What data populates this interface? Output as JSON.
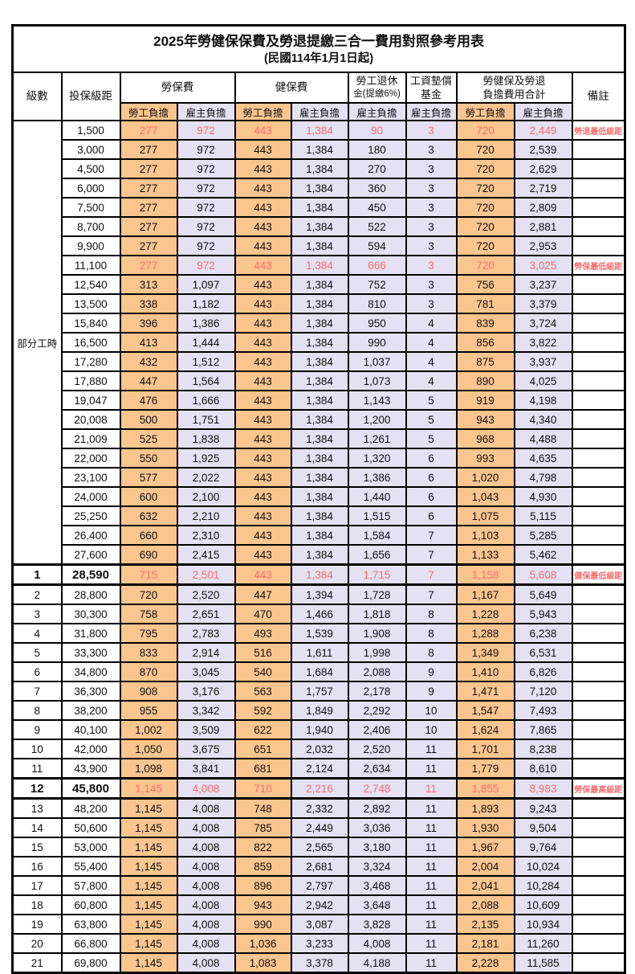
{
  "title": "2025年勞健保保費及勞退提繳三合一費用對照參考用表",
  "subtitle": "(民國114年1月1日起)",
  "header": {
    "level": "級數",
    "bracket": "投保級距",
    "labor": "勞保費",
    "health": "健保費",
    "pension_l1": "勞工退休",
    "pension_l2": "金(提繳6%)",
    "fund_l1": "工資墊償",
    "fund_l2": "基金",
    "total_l1": "勞健保及勞退",
    "total_l2": "負擔費用合計",
    "note": "備註",
    "employee": "勞工負擔",
    "employer": "雇主負擔"
  },
  "part_time_label": "部分工時",
  "colors": {
    "employee_bg": "#FBC58F",
    "employer_bg": "#E3E1F2",
    "highlight_red": "#F96C6C",
    "border": "#000000"
  },
  "rows": [
    {
      "level": "",
      "bracket": "1,500",
      "li_emp": "277",
      "li_er": "972",
      "hi_emp": "443",
      "hi_er": "1,384",
      "pension": "90",
      "fund": "3",
      "tot_emp": "720",
      "tot_er": "2,449",
      "note": "勞退最低級距",
      "red": true
    },
    {
      "level": "",
      "bracket": "3,000",
      "li_emp": "277",
      "li_er": "972",
      "hi_emp": "443",
      "hi_er": "1,384",
      "pension": "180",
      "fund": "3",
      "tot_emp": "720",
      "tot_er": "2,539",
      "note": ""
    },
    {
      "level": "",
      "bracket": "4,500",
      "li_emp": "277",
      "li_er": "972",
      "hi_emp": "443",
      "hi_er": "1,384",
      "pension": "270",
      "fund": "3",
      "tot_emp": "720",
      "tot_er": "2,629",
      "note": ""
    },
    {
      "level": "",
      "bracket": "6,000",
      "li_emp": "277",
      "li_er": "972",
      "hi_emp": "443",
      "hi_er": "1,384",
      "pension": "360",
      "fund": "3",
      "tot_emp": "720",
      "tot_er": "2,719",
      "note": ""
    },
    {
      "level": "",
      "bracket": "7,500",
      "li_emp": "277",
      "li_er": "972",
      "hi_emp": "443",
      "hi_er": "1,384",
      "pension": "450",
      "fund": "3",
      "tot_emp": "720",
      "tot_er": "2,809",
      "note": ""
    },
    {
      "level": "",
      "bracket": "8,700",
      "li_emp": "277",
      "li_er": "972",
      "hi_emp": "443",
      "hi_er": "1,384",
      "pension": "522",
      "fund": "3",
      "tot_emp": "720",
      "tot_er": "2,881",
      "note": ""
    },
    {
      "level": "",
      "bracket": "9,900",
      "li_emp": "277",
      "li_er": "972",
      "hi_emp": "443",
      "hi_er": "1,384",
      "pension": "594",
      "fund": "3",
      "tot_emp": "720",
      "tot_er": "2,953",
      "note": ""
    },
    {
      "level": "",
      "bracket": "11,100",
      "li_emp": "277",
      "li_er": "972",
      "hi_emp": "443",
      "hi_er": "1,384",
      "pension": "666",
      "fund": "3",
      "tot_emp": "720",
      "tot_er": "3,025",
      "note": "勞保最低級距",
      "red": true
    },
    {
      "level": "",
      "bracket": "12,540",
      "li_emp": "313",
      "li_er": "1,097",
      "hi_emp": "443",
      "hi_er": "1,384",
      "pension": "752",
      "fund": "3",
      "tot_emp": "756",
      "tot_er": "3,237",
      "note": ""
    },
    {
      "level": "",
      "bracket": "13,500",
      "li_emp": "338",
      "li_er": "1,182",
      "hi_emp": "443",
      "hi_er": "1,384",
      "pension": "810",
      "fund": "3",
      "tot_emp": "781",
      "tot_er": "3,379",
      "note": ""
    },
    {
      "level": "",
      "bracket": "15,840",
      "li_emp": "396",
      "li_er": "1,386",
      "hi_emp": "443",
      "hi_er": "1,384",
      "pension": "950",
      "fund": "4",
      "tot_emp": "839",
      "tot_er": "3,724",
      "note": ""
    },
    {
      "level": "",
      "bracket": "16,500",
      "li_emp": "413",
      "li_er": "1,444",
      "hi_emp": "443",
      "hi_er": "1,384",
      "pension": "990",
      "fund": "4",
      "tot_emp": "856",
      "tot_er": "3,822",
      "note": ""
    },
    {
      "level": "",
      "bracket": "17,280",
      "li_emp": "432",
      "li_er": "1,512",
      "hi_emp": "443",
      "hi_er": "1,384",
      "pension": "1,037",
      "fund": "4",
      "tot_emp": "875",
      "tot_er": "3,937",
      "note": ""
    },
    {
      "level": "",
      "bracket": "17,880",
      "li_emp": "447",
      "li_er": "1,564",
      "hi_emp": "443",
      "hi_er": "1,384",
      "pension": "1,073",
      "fund": "4",
      "tot_emp": "890",
      "tot_er": "4,025",
      "note": ""
    },
    {
      "level": "",
      "bracket": "19,047",
      "li_emp": "476",
      "li_er": "1,666",
      "hi_emp": "443",
      "hi_er": "1,384",
      "pension": "1,143",
      "fund": "5",
      "tot_emp": "919",
      "tot_er": "4,198",
      "note": ""
    },
    {
      "level": "",
      "bracket": "20,008",
      "li_emp": "500",
      "li_er": "1,751",
      "hi_emp": "443",
      "hi_er": "1,384",
      "pension": "1,200",
      "fund": "5",
      "tot_emp": "943",
      "tot_er": "4,340",
      "note": ""
    },
    {
      "level": "",
      "bracket": "21,009",
      "li_emp": "525",
      "li_er": "1,838",
      "hi_emp": "443",
      "hi_er": "1,384",
      "pension": "1,261",
      "fund": "5",
      "tot_emp": "968",
      "tot_er": "4,488",
      "note": ""
    },
    {
      "level": "",
      "bracket": "22,000",
      "li_emp": "550",
      "li_er": "1,925",
      "hi_emp": "443",
      "hi_er": "1,384",
      "pension": "1,320",
      "fund": "6",
      "tot_emp": "993",
      "tot_er": "4,635",
      "note": ""
    },
    {
      "level": "",
      "bracket": "23,100",
      "li_emp": "577",
      "li_er": "2,022",
      "hi_emp": "443",
      "hi_er": "1,384",
      "pension": "1,386",
      "fund": "6",
      "tot_emp": "1,020",
      "tot_er": "4,798",
      "note": ""
    },
    {
      "level": "",
      "bracket": "24,000",
      "li_emp": "600",
      "li_er": "2,100",
      "hi_emp": "443",
      "hi_er": "1,384",
      "pension": "1,440",
      "fund": "6",
      "tot_emp": "1,043",
      "tot_er": "4,930",
      "note": ""
    },
    {
      "level": "",
      "bracket": "25,250",
      "li_emp": "632",
      "li_er": "2,210",
      "hi_emp": "443",
      "hi_er": "1,384",
      "pension": "1,515",
      "fund": "6",
      "tot_emp": "1,075",
      "tot_er": "5,115",
      "note": ""
    },
    {
      "level": "",
      "bracket": "26,400",
      "li_emp": "660",
      "li_er": "2,310",
      "hi_emp": "443",
      "hi_er": "1,384",
      "pension": "1,584",
      "fund": "7",
      "tot_emp": "1,103",
      "tot_er": "5,285",
      "note": ""
    },
    {
      "level": "",
      "bracket": "27,600",
      "li_emp": "690",
      "li_er": "2,415",
      "hi_emp": "443",
      "hi_er": "1,384",
      "pension": "1,656",
      "fund": "7",
      "tot_emp": "1,133",
      "tot_er": "5,462",
      "note": ""
    },
    {
      "level": "1",
      "bracket": "28,590",
      "li_emp": "715",
      "li_er": "2,501",
      "hi_emp": "443",
      "hi_er": "1,384",
      "pension": "1,715",
      "fund": "7",
      "tot_emp": "1,158",
      "tot_er": "5,608",
      "note": "健保最低級距",
      "red": true,
      "em": true
    },
    {
      "level": "2",
      "bracket": "28,800",
      "li_emp": "720",
      "li_er": "2,520",
      "hi_emp": "447",
      "hi_er": "1,394",
      "pension": "1,728",
      "fund": "7",
      "tot_emp": "1,167",
      "tot_er": "5,649",
      "note": ""
    },
    {
      "level": "3",
      "bracket": "30,300",
      "li_emp": "758",
      "li_er": "2,651",
      "hi_emp": "470",
      "hi_er": "1,466",
      "pension": "1,818",
      "fund": "8",
      "tot_emp": "1,228",
      "tot_er": "5,943",
      "note": ""
    },
    {
      "level": "4",
      "bracket": "31,800",
      "li_emp": "795",
      "li_er": "2,783",
      "hi_emp": "493",
      "hi_er": "1,539",
      "pension": "1,908",
      "fund": "8",
      "tot_emp": "1,288",
      "tot_er": "6,238",
      "note": ""
    },
    {
      "level": "5",
      "bracket": "33,300",
      "li_emp": "833",
      "li_er": "2,914",
      "hi_emp": "516",
      "hi_er": "1,611",
      "pension": "1,998",
      "fund": "8",
      "tot_emp": "1,349",
      "tot_er": "6,531",
      "note": ""
    },
    {
      "level": "6",
      "bracket": "34,800",
      "li_emp": "870",
      "li_er": "3,045",
      "hi_emp": "540",
      "hi_er": "1,684",
      "pension": "2,088",
      "fund": "9",
      "tot_emp": "1,410",
      "tot_er": "6,826",
      "note": ""
    },
    {
      "level": "7",
      "bracket": "36,300",
      "li_emp": "908",
      "li_er": "3,176",
      "hi_emp": "563",
      "hi_er": "1,757",
      "pension": "2,178",
      "fund": "9",
      "tot_emp": "1,471",
      "tot_er": "7,120",
      "note": ""
    },
    {
      "level": "8",
      "bracket": "38,200",
      "li_emp": "955",
      "li_er": "3,342",
      "hi_emp": "592",
      "hi_er": "1,849",
      "pension": "2,292",
      "fund": "10",
      "tot_emp": "1,547",
      "tot_er": "7,493",
      "note": ""
    },
    {
      "level": "9",
      "bracket": "40,100",
      "li_emp": "1,002",
      "li_er": "3,509",
      "hi_emp": "622",
      "hi_er": "1,940",
      "pension": "2,406",
      "fund": "10",
      "tot_emp": "1,624",
      "tot_er": "7,865",
      "note": ""
    },
    {
      "level": "10",
      "bracket": "42,000",
      "li_emp": "1,050",
      "li_er": "3,675",
      "hi_emp": "651",
      "hi_er": "2,032",
      "pension": "2,520",
      "fund": "11",
      "tot_emp": "1,701",
      "tot_er": "8,238",
      "note": ""
    },
    {
      "level": "11",
      "bracket": "43,900",
      "li_emp": "1,098",
      "li_er": "3,841",
      "hi_emp": "681",
      "hi_er": "2,124",
      "pension": "2,634",
      "fund": "11",
      "tot_emp": "1,779",
      "tot_er": "8,610",
      "note": ""
    },
    {
      "level": "12",
      "bracket": "45,800",
      "li_emp": "1,145",
      "li_er": "4,008",
      "hi_emp": "710",
      "hi_er": "2,216",
      "pension": "2,748",
      "fund": "11",
      "tot_emp": "1,855",
      "tot_er": "8,983",
      "note": "勞保最高級距",
      "red": true,
      "em": true
    },
    {
      "level": "13",
      "bracket": "48,200",
      "li_emp": "1,145",
      "li_er": "4,008",
      "hi_emp": "748",
      "hi_er": "2,332",
      "pension": "2,892",
      "fund": "11",
      "tot_emp": "1,893",
      "tot_er": "9,243",
      "note": ""
    },
    {
      "level": "14",
      "bracket": "50,600",
      "li_emp": "1,145",
      "li_er": "4,008",
      "hi_emp": "785",
      "hi_er": "2,449",
      "pension": "3,036",
      "fund": "11",
      "tot_emp": "1,930",
      "tot_er": "9,504",
      "note": ""
    },
    {
      "level": "15",
      "bracket": "53,000",
      "li_emp": "1,145",
      "li_er": "4,008",
      "hi_emp": "822",
      "hi_er": "2,565",
      "pension": "3,180",
      "fund": "11",
      "tot_emp": "1,967",
      "tot_er": "9,764",
      "note": ""
    },
    {
      "level": "16",
      "bracket": "55,400",
      "li_emp": "1,145",
      "li_er": "4,008",
      "hi_emp": "859",
      "hi_er": "2,681",
      "pension": "3,324",
      "fund": "11",
      "tot_emp": "2,004",
      "tot_er": "10,024",
      "note": ""
    },
    {
      "level": "17",
      "bracket": "57,800",
      "li_emp": "1,145",
      "li_er": "4,008",
      "hi_emp": "896",
      "hi_er": "2,797",
      "pension": "3,468",
      "fund": "11",
      "tot_emp": "2,041",
      "tot_er": "10,284",
      "note": ""
    },
    {
      "level": "18",
      "bracket": "60,800",
      "li_emp": "1,145",
      "li_er": "4,008",
      "hi_emp": "943",
      "hi_er": "2,942",
      "pension": "3,648",
      "fund": "11",
      "tot_emp": "2,088",
      "tot_er": "10,609",
      "note": ""
    },
    {
      "level": "19",
      "bracket": "63,800",
      "li_emp": "1,145",
      "li_er": "4,008",
      "hi_emp": "990",
      "hi_er": "3,087",
      "pension": "3,828",
      "fund": "11",
      "tot_emp": "2,135",
      "tot_er": "10,934",
      "note": ""
    },
    {
      "level": "20",
      "bracket": "66,800",
      "li_emp": "1,145",
      "li_er": "4,008",
      "hi_emp": "1,036",
      "hi_er": "3,233",
      "pension": "4,008",
      "fund": "11",
      "tot_emp": "2,181",
      "tot_er": "11,260",
      "note": ""
    },
    {
      "level": "21",
      "bracket": "69,800",
      "li_emp": "1,145",
      "li_er": "4,008",
      "hi_emp": "1,083",
      "hi_er": "3,378",
      "pension": "4,188",
      "fund": "11",
      "tot_emp": "2,228",
      "tot_er": "11,585",
      "note": ""
    }
  ]
}
